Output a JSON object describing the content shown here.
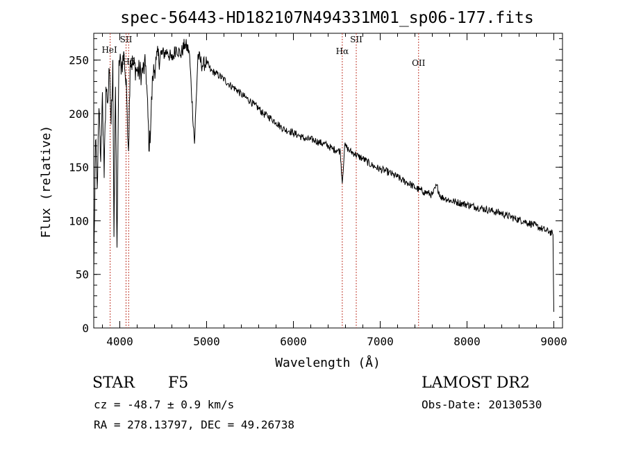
{
  "chart_data": {
    "type": "line",
    "title": "spec-56443-HD182107N494331M01_sp06-177.fits",
    "xlabel": "Wavelength (Å)",
    "ylabel": "Flux (relative)",
    "xlim": [
      3700,
      9100
    ],
    "ylim": [
      0,
      275
    ],
    "x_ticks": [
      4000,
      5000,
      6000,
      7000,
      8000,
      9000
    ],
    "x_tick_labels": [
      "4000",
      "5000",
      "6000",
      "7000",
      "8000",
      "9000"
    ],
    "y_ticks": [
      0,
      50,
      100,
      150,
      200,
      250
    ],
    "y_tick_labels": [
      "0",
      "50",
      "100",
      "150",
      "200",
      "250"
    ],
    "x_minor_step": 200,
    "y_minor_step": 10,
    "series": [
      {
        "name": "flux",
        "x": [
          3700,
          3720,
          3740,
          3760,
          3780,
          3800,
          3820,
          3840,
          3860,
          3880,
          3900,
          3920,
          3933,
          3950,
          3968,
          3990,
          4020,
          4050,
          4080,
          4101,
          4120,
          4160,
          4200,
          4250,
          4300,
          4340,
          4380,
          4420,
          4480,
          4550,
          4600,
          4650,
          4700,
          4750,
          4800,
          4861,
          4900,
          4950,
          5000,
          5050,
          5100,
          5150,
          5200,
          5250,
          5300,
          5350,
          5400,
          5450,
          5500,
          5550,
          5600,
          5650,
          5700,
          5750,
          5800,
          5850,
          5900,
          5950,
          6000,
          6050,
          6100,
          6150,
          6200,
          6250,
          6300,
          6350,
          6400,
          6450,
          6500,
          6540,
          6563,
          6590,
          6620,
          6650,
          6700,
          6750,
          6800,
          6850,
          6900,
          6950,
          7000,
          7050,
          7100,
          7150,
          7200,
          7250,
          7300,
          7350,
          7400,
          7450,
          7500,
          7550,
          7600,
          7650,
          7700,
          7750,
          7800,
          7850,
          7900,
          7950,
          8000,
          8050,
          8100,
          8150,
          8200,
          8250,
          8300,
          8350,
          8400,
          8450,
          8500,
          8550,
          8600,
          8650,
          8700,
          8750,
          8800,
          8850,
          8900,
          8950,
          8990,
          9000
        ],
        "y": [
          50,
          175,
          130,
          205,
          155,
          220,
          140,
          225,
          210,
          240,
          190,
          250,
          85,
          225,
          75,
          250,
          245,
          255,
          215,
          165,
          250,
          245,
          240,
          238,
          245,
          165,
          235,
          250,
          255,
          258,
          250,
          262,
          255,
          265,
          258,
          172,
          255,
          245,
          248,
          240,
          238,
          235,
          232,
          228,
          225,
          222,
          218,
          215,
          212,
          208,
          205,
          200,
          198,
          195,
          192,
          188,
          185,
          184,
          182,
          180,
          178,
          176,
          176,
          175,
          173,
          172,
          170,
          167,
          166,
          165,
          135,
          170,
          168,
          165,
          163,
          160,
          158,
          155,
          152,
          150,
          148,
          147,
          145,
          143,
          141,
          138,
          136,
          134,
          131,
          129,
          127,
          126,
          124,
          133,
          122,
          121,
          119,
          118,
          117,
          116,
          115,
          114,
          113,
          112,
          111,
          110,
          109,
          108,
          107,
          105,
          104,
          102,
          101,
          100,
          98,
          97,
          95,
          93,
          91,
          90,
          87,
          15
        ]
      }
    ],
    "line_labels": [
      {
        "x": 3889,
        "label": "HeI"
      },
      {
        "x": 4072,
        "label": "SII"
      },
      {
        "x": 4102,
        "label": "Hδ"
      },
      {
        "x": 6563,
        "label": "Hα"
      },
      {
        "x": 6724,
        "label": "SII"
      },
      {
        "x": 7442,
        "label": "OII"
      }
    ]
  },
  "footer": {
    "object_class": "STAR",
    "subclass": "F5",
    "redshift": "cz = -48.7 ± 0.9 km/s",
    "coordinates": "RA = 278.13797, DEC =  49.26738",
    "survey": "LAMOST DR2",
    "obs_date": "Obs-Date: 20130530"
  },
  "colors": {
    "line": "#000000",
    "marker": "#c0392b",
    "axis": "#000000"
  }
}
